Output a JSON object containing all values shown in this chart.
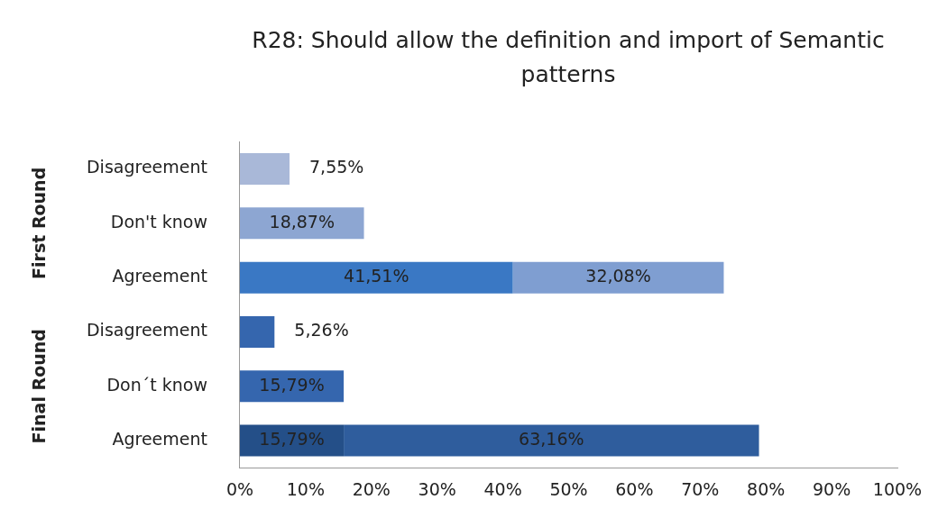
{
  "chart_data": {
    "type": "bar",
    "orientation": "horizontal",
    "stacked": true,
    "title": "R28: Should allow the definition and import of Semantic patterns",
    "categories": [
      "Disagreement",
      "Don't know",
      "Agreement",
      "Disagreement",
      "Don´t know",
      "Agreement"
    ],
    "series": [
      {
        "values": [
          7.55,
          18.87,
          41.51,
          5.26,
          15.79,
          15.79
        ],
        "colors": [
          "#a9b8d8",
          "#8da6d2",
          "#3a78c4",
          "#3566ae",
          "#3566ae",
          "#244f88"
        ],
        "value_labels": [
          "7,55%",
          "18,87%",
          "41,51%",
          "5,26%",
          "15,79%",
          "15,79%"
        ]
      },
      {
        "values": [
          null,
          null,
          32.08,
          null,
          null,
          63.16
        ],
        "colors": [
          "#8da6d2",
          "#8da6d2",
          "#7f9ed1",
          "#2f5d9d",
          "#2f5d9d",
          "#2f5d9d"
        ],
        "value_labels": [
          null,
          null,
          "32,08%",
          null,
          null,
          "63,16%"
        ]
      }
    ],
    "annotations": [
      "First Round",
      "Final Round"
    ],
    "xlim": [
      0,
      100
    ],
    "xticks": [
      {
        "value": 0,
        "label": "0%"
      },
      {
        "value": 10,
        "label": "10%"
      },
      {
        "value": 20,
        "label": "20%"
      },
      {
        "value": 30,
        "label": "30%"
      },
      {
        "value": 40,
        "label": "40%"
      },
      {
        "value": 50,
        "label": "50%"
      },
      {
        "value": 60,
        "label": "60%"
      },
      {
        "value": 70,
        "label": "70%"
      },
      {
        "value": 80,
        "label": "80%"
      },
      {
        "value": 90,
        "label": "90%"
      },
      {
        "value": 100,
        "label": "100%"
      }
    ],
    "grid": false,
    "legend": false
  }
}
